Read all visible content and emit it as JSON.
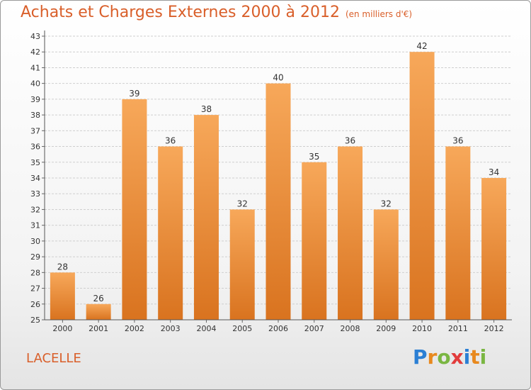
{
  "title": "Achats et Charges Externes 2000 à 2012",
  "subtitle": "(en milliers d'€)",
  "commune": "LACELLE",
  "logo": {
    "letters": [
      "P",
      "r",
      "o",
      "x",
      "i",
      "t",
      "i"
    ],
    "colors": [
      "#2b7fd4",
      "#e8891e",
      "#7ab642",
      "#e23c3c",
      "#2b7fd4",
      "#e8891e",
      "#7ab642"
    ]
  },
  "colors": {
    "bar_top": "#f7a85a",
    "bar_bottom": "#d9731f",
    "grid": "#cfcfcf",
    "text": "#333333",
    "accent": "#d95f2a"
  },
  "chart_data": {
    "type": "bar",
    "categories": [
      "2000",
      "2001",
      "2002",
      "2003",
      "2004",
      "2005",
      "2006",
      "2007",
      "2008",
      "2009",
      "2010",
      "2011",
      "2012"
    ],
    "values": [
      28,
      26,
      39,
      36,
      38,
      32,
      40,
      35,
      36,
      32,
      42,
      36,
      34
    ],
    "ylim": [
      25,
      43
    ],
    "yticks": [
      25,
      26,
      27,
      28,
      29,
      30,
      31,
      32,
      33,
      34,
      35,
      36,
      37,
      38,
      39,
      40,
      41,
      42,
      43
    ],
    "grid": true,
    "data_labels": true
  }
}
